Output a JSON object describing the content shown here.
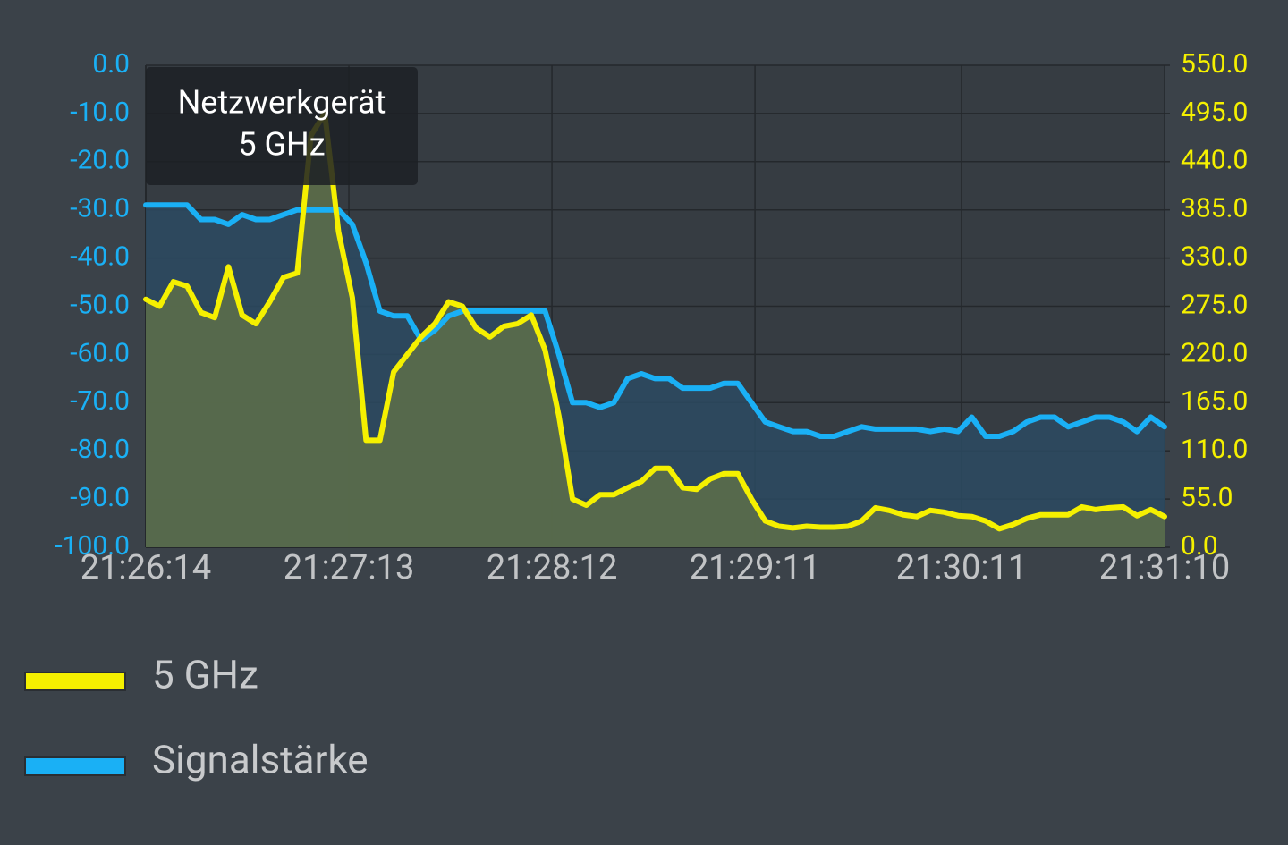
{
  "chart_data": {
    "type": "line",
    "x": [
      "21:26:14",
      "21:26:18",
      "21:26:22",
      "21:26:26",
      "21:26:30",
      "21:26:34",
      "21:26:38",
      "21:26:42",
      "21:26:46",
      "21:26:50",
      "21:26:54",
      "21:26:58",
      "21:27:02",
      "21:27:06",
      "21:27:10",
      "21:27:14",
      "21:27:18",
      "21:27:22",
      "21:27:26",
      "21:27:30",
      "21:27:34",
      "21:27:38",
      "21:27:42",
      "21:27:46",
      "21:27:50",
      "21:27:54",
      "21:27:58",
      "21:28:02",
      "21:28:06",
      "21:28:10",
      "21:28:14",
      "21:28:18",
      "21:28:22",
      "21:28:26",
      "21:28:30",
      "21:28:34",
      "21:28:38",
      "21:28:42",
      "21:28:46",
      "21:28:50",
      "21:28:54",
      "21:28:58",
      "21:29:02",
      "21:29:06",
      "21:29:10",
      "21:29:14",
      "21:29:18",
      "21:29:22",
      "21:29:26",
      "21:29:30",
      "21:29:34",
      "21:29:38",
      "21:29:42",
      "21:29:46",
      "21:29:50",
      "21:29:54",
      "21:29:58",
      "21:30:02",
      "21:30:06",
      "21:30:10",
      "21:30:14",
      "21:30:18",
      "21:30:22",
      "21:30:26",
      "21:30:30",
      "21:30:34",
      "21:30:38",
      "21:30:42",
      "21:30:46",
      "21:30:50",
      "21:30:54",
      "21:30:58",
      "21:31:02",
      "21:31:06",
      "21:31:10"
    ],
    "series": [
      {
        "name": "5 GHz",
        "color": "#f5f000",
        "fill": "#5e7049",
        "axis": "y2",
        "values": [
          283,
          275,
          303,
          298,
          268,
          262,
          320,
          265,
          255,
          280,
          308,
          313,
          470,
          495,
          360,
          285,
          122,
          122,
          200,
          220,
          240,
          255,
          280,
          275,
          250,
          240,
          252,
          255,
          265,
          225,
          150,
          55,
          48,
          60,
          60,
          68,
          75,
          90,
          90,
          68,
          66,
          78,
          84,
          84,
          55,
          30,
          24,
          22,
          24,
          23,
          23,
          24,
          30,
          45,
          42,
          37,
          35,
          42,
          40,
          36,
          35,
          30,
          21,
          26,
          33,
          37,
          37,
          37,
          46,
          43,
          45,
          46,
          36,
          43,
          35
        ]
      },
      {
        "name": "Signalstärke",
        "color": "#1ab0f5",
        "fill": "#2c4a62",
        "values": [
          -29,
          -29,
          -29,
          -29,
          -32,
          -32,
          -33,
          -31,
          -32,
          -32,
          -31,
          -30,
          -30,
          -30,
          -30,
          -33,
          -41,
          -51,
          -52,
          -52,
          -57,
          -55,
          -52,
          -51,
          -51,
          -51,
          -51,
          -51,
          -51,
          -51,
          -60,
          -70,
          -70,
          -71,
          -70,
          -65,
          -64,
          -65,
          -65,
          -67,
          -67,
          -67,
          -66,
          -66,
          -70,
          -74,
          -75,
          -76,
          -76,
          -77,
          -77,
          -76,
          -75,
          -75.5,
          -75.5,
          -75.5,
          -75.5,
          -76,
          -75.5,
          -76,
          -73,
          -77,
          -77,
          -76,
          -74,
          -73,
          -73,
          -75,
          -74,
          -73,
          -73,
          -74,
          -76,
          -73,
          -75
        ]
      }
    ],
    "xlim": [
      "21:26:14",
      "21:31:10"
    ],
    "xticks": [
      "21:26:14",
      "21:27:13",
      "21:28:12",
      "21:29:11",
      "21:30:11",
      "21:31:10"
    ],
    "ylim": [
      -100,
      0
    ],
    "yticks": [
      {
        "value": 0,
        "label": "0.0"
      },
      {
        "value": -10,
        "label": "-10.0"
      },
      {
        "value": -20,
        "label": "-20.0"
      },
      {
        "value": -30,
        "label": "-30.0"
      },
      {
        "value": -40,
        "label": "-40.0"
      },
      {
        "value": -50,
        "label": "-50.0"
      },
      {
        "value": -60,
        "label": "-60.0"
      },
      {
        "value": -70,
        "label": "-70.0"
      },
      {
        "value": -80,
        "label": "-80.0"
      },
      {
        "value": -90,
        "label": "-90.0"
      },
      {
        "value": -100,
        "label": "-100.0"
      }
    ],
    "y2lim": [
      0,
      550
    ],
    "y2ticks": [
      {
        "value": 550,
        "label": "550.0"
      },
      {
        "value": 495,
        "label": "495.0"
      },
      {
        "value": 440,
        "label": "440.0"
      },
      {
        "value": 385,
        "label": "385.0"
      },
      {
        "value": 330,
        "label": "330.0"
      },
      {
        "value": 275,
        "label": "275.0"
      },
      {
        "value": 220,
        "label": "220.0"
      },
      {
        "value": 165,
        "label": "165.0"
      },
      {
        "value": 110,
        "label": "110.0"
      },
      {
        "value": 55,
        "label": "55.0"
      },
      {
        "value": 0,
        "label": "0.0"
      }
    ],
    "grid": true,
    "legend": "bottom-left",
    "tooltip": {
      "title": "Netzwerkgerät",
      "subtitle": "5 GHz"
    }
  }
}
